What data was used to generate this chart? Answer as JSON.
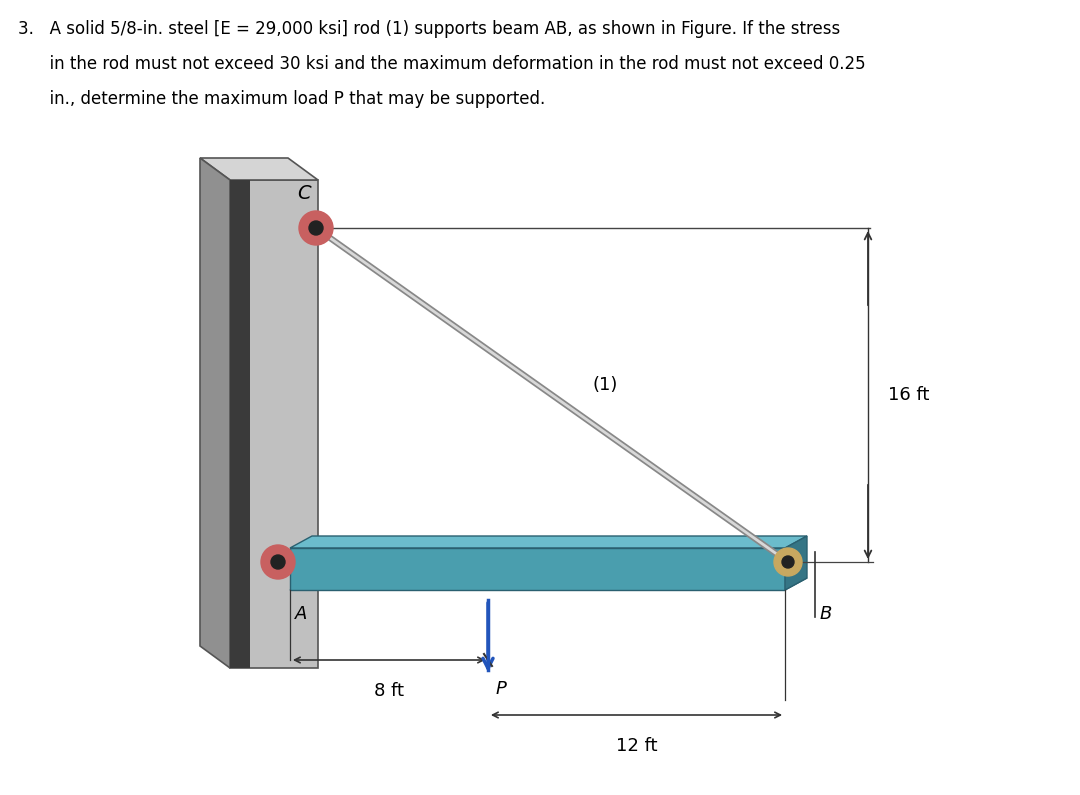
{
  "bg_color": "#ffffff",
  "wall_front_color": "#c0c0c0",
  "wall_side_color": "#909090",
  "wall_top_color": "#d5d5d5",
  "wall_dark_stripe": "#3a3a3a",
  "wall_edge_color": "#555555",
  "beam_top_color": "#6bbccc",
  "beam_front_color": "#4a9eae",
  "beam_side_color": "#357585",
  "beam_bottom_color": "#2a6575",
  "beam_edge_color": "#2a6070",
  "rod_outer_color": "#888888",
  "rod_inner_color": "#d8d8d8",
  "pin_red_color": "#c86060",
  "pin_tan_color": "#c8a860",
  "pin_dark": "#222222",
  "dim_line_color": "#333333",
  "arrow_P_color": "#2255bb",
  "text_color": "#000000",
  "label_C": "C",
  "label_A": "A",
  "label_B": "B",
  "label_rod": "(1)",
  "label_P": "P",
  "label_8ft": "8 ft",
  "label_12ft": "12 ft",
  "label_16ft": "16 ft",
  "title_line1": "3.   A solid 5/8-in. steel [E = 29,000 ksi] rod (1) supports beam AB, as shown in Figure. If the stress",
  "title_line2": "      in the rod must not exceed 30 ksi and the maximum deformation in the rod must not exceed 0.25",
  "title_line3": "      in., determine the maximum load P that may be supported."
}
